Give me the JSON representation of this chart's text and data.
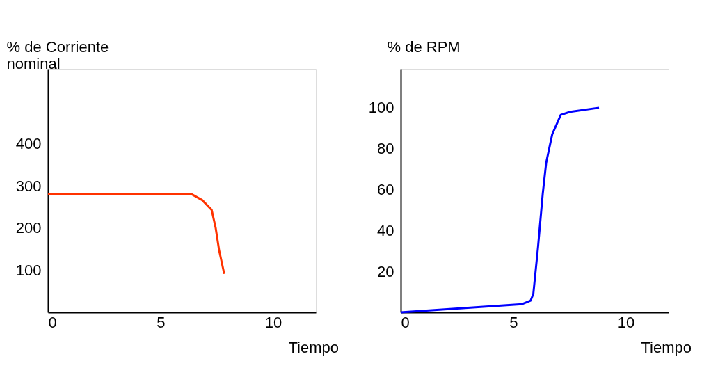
{
  "chart_data": [
    {
      "type": "line",
      "ylabel": "% de Corriente nominal",
      "xlabel": "Tiempo",
      "xlim": [
        0,
        11.9
      ],
      "xticks": [
        0,
        5,
        10
      ],
      "ylim": [
        0,
        577
      ],
      "yticks": [
        100,
        200,
        300,
        400
      ],
      "grid": false,
      "legend": false,
      "series": [
        {
          "color": "#ff3300",
          "x": [
            0,
            6.38,
            6.85,
            7.27,
            7.45,
            7.6,
            7.83
          ],
          "values": [
            280,
            280,
            266,
            243,
            200,
            148,
            91
          ]
        }
      ]
    },
    {
      "type": "line",
      "ylabel": "% de RPM",
      "xlabel": "Tiempo",
      "xlim": [
        0,
        11.9
      ],
      "xticks": [
        0,
        5,
        10
      ],
      "ylim": [
        0,
        119
      ],
      "yticks": [
        20,
        40,
        60,
        80,
        100
      ],
      "grid": false,
      "legend": false,
      "series": [
        {
          "color": "#0000ff",
          "x": [
            0,
            5.39,
            5.77,
            5.89,
            6.1,
            6.31,
            6.46,
            6.73,
            7.11,
            7.53,
            8.81
          ],
          "values": [
            0,
            4,
            5.7,
            9,
            32,
            58,
            73,
            87,
            96.5,
            98,
            100
          ]
        }
      ]
    }
  ]
}
